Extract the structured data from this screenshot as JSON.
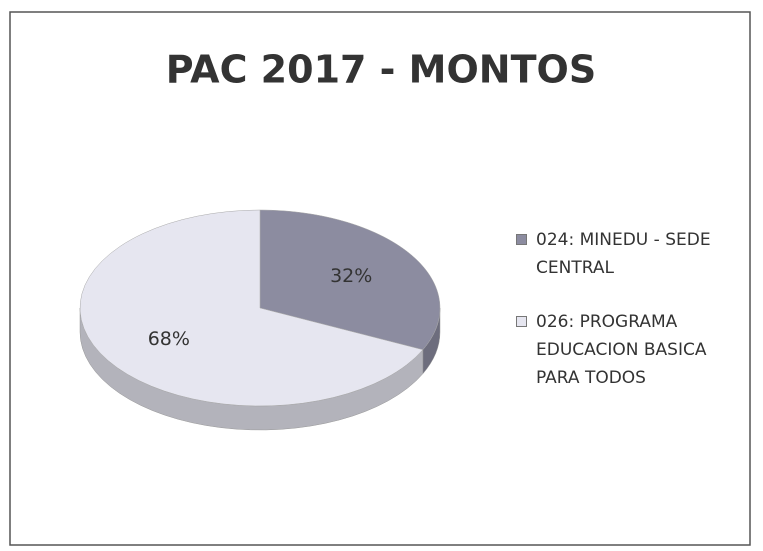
{
  "chart_data": {
    "type": "pie",
    "title": "PAC 2017 - MONTOS",
    "categories": [
      "024: MINEDU - SEDE CENTRAL",
      "026: PROGRAMA EDUCACION BASICA PARA TODOS"
    ],
    "values": [
      32,
      68
    ],
    "value_labels": [
      "32%",
      "68%"
    ],
    "colors": [
      "#8c8ca0",
      "#e6e6f0"
    ],
    "legend": "right"
  }
}
